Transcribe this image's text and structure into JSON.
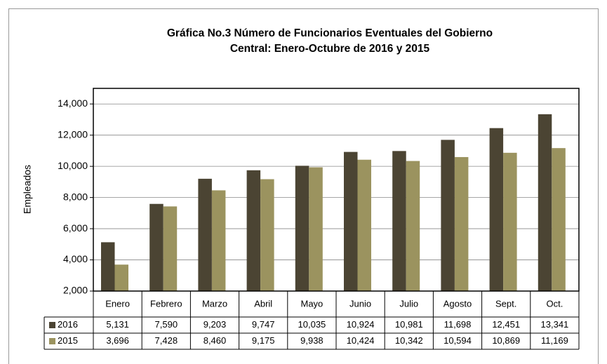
{
  "chart_data": {
    "type": "bar",
    "title": [
      "Gráfica No.3 Número de Funcionarios Eventuales del Gobierno",
      "Central: Enero-Octubre de 2016 y 2015"
    ],
    "y_label": "Empleados",
    "categories": [
      "Enero",
      "Febrero",
      "Marzo",
      "Abril",
      "Mayo",
      "Junio",
      "Julio",
      "Agosto",
      "Sept.",
      "Oct."
    ],
    "series": [
      {
        "name": "2016",
        "color": "#4b4433",
        "values": [
          5131,
          7590,
          9203,
          9747,
          10035,
          10924,
          10981,
          11698,
          12451,
          13341
        ],
        "value_labels": [
          "5,131",
          "7,590",
          "9,203",
          "9,747",
          "10,035",
          "10,924",
          "10,981",
          "11,698",
          "12,451",
          "13,341"
        ]
      },
      {
        "name": "2015",
        "color": "#9b935f",
        "values": [
          3696,
          7428,
          8460,
          9175,
          9938,
          10424,
          10342,
          10594,
          10869,
          11169
        ],
        "value_labels": [
          "3,696",
          "7,428",
          "8,460",
          "9,175",
          "9,938",
          "10,424",
          "10,342",
          "10,594",
          "10,869",
          "11,169"
        ]
      }
    ],
    "ylim": [
      2000,
      15000
    ],
    "yticks": [
      {
        "value": 2000,
        "label": "2,000"
      },
      {
        "value": 4000,
        "label": "4,000"
      },
      {
        "value": 6000,
        "label": "6,000"
      },
      {
        "value": 8000,
        "label": "8,000"
      },
      {
        "value": 10000,
        "label": "10,000"
      },
      {
        "value": 12000,
        "label": "12,000"
      },
      {
        "value": 14000,
        "label": "14,000"
      }
    ],
    "grid": true
  }
}
